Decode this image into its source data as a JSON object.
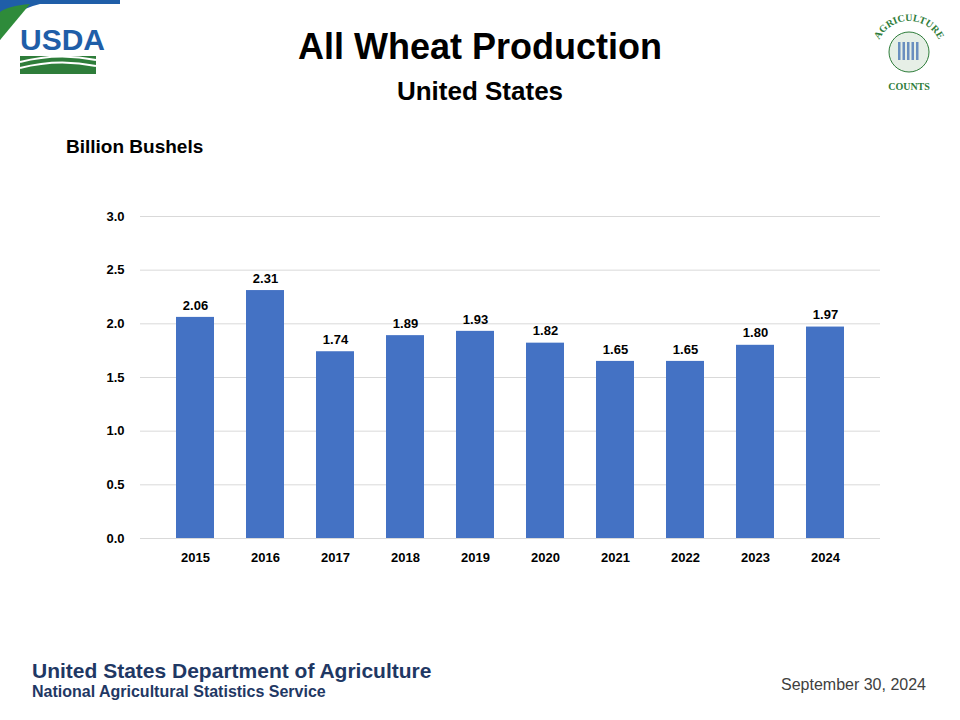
{
  "chart_data": {
    "type": "bar",
    "title": "All Wheat Production",
    "subtitle": "United States",
    "y_label": "Billion Bushels",
    "categories": [
      "2015",
      "2016",
      "2017",
      "2018",
      "2019",
      "2020",
      "2021",
      "2022",
      "2023",
      "2024"
    ],
    "values": [
      2.06,
      2.31,
      1.74,
      1.89,
      1.93,
      1.82,
      1.65,
      1.65,
      1.8,
      1.97
    ],
    "value_labels": [
      "2.06",
      "2.31",
      "1.74",
      "1.89",
      "1.93",
      "1.82",
      "1.65",
      "1.65",
      "1.80",
      "1.97"
    ],
    "color": "#4472c4",
    "ylim": [
      0,
      3
    ],
    "yticks": [
      {
        "value": 0,
        "label": "0.0"
      },
      0.5,
      {
        "value": 1,
        "label": "1.0"
      },
      1.5,
      {
        "value": 2,
        "label": "2.0"
      },
      2.5,
      {
        "value": 3,
        "label": "3.0"
      }
    ],
    "grid": true,
    "data_labels": true,
    "logo_text": "USDA",
    "badge_text": [
      "AGRICULTURE",
      "COUNTS"
    ],
    "footer": [
      "United States Department of Agriculture",
      "National Agricultural Statistics Service"
    ],
    "date": "September 30, 2024"
  }
}
